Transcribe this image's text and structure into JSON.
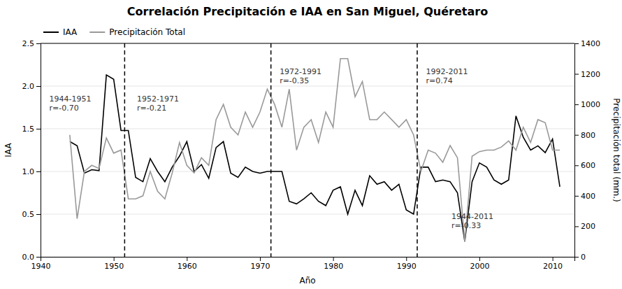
{
  "chart_data": {
    "type": "line",
    "title": "Correlación Precipitación e IAA en San Miguel, Quéretaro",
    "xlabel": "Año",
    "ylabel": "IAA",
    "y2label": "Precipitación total (mm.)",
    "x": [
      1944,
      1945,
      1946,
      1947,
      1948,
      1949,
      1950,
      1951,
      1952,
      1953,
      1954,
      1955,
      1956,
      1957,
      1958,
      1959,
      1960,
      1961,
      1962,
      1963,
      1964,
      1965,
      1966,
      1967,
      1968,
      1969,
      1970,
      1971,
      1972,
      1973,
      1974,
      1975,
      1976,
      1977,
      1978,
      1979,
      1980,
      1981,
      1982,
      1983,
      1984,
      1985,
      1986,
      1987,
      1988,
      1989,
      1990,
      1991,
      1992,
      1993,
      1994,
      1995,
      1996,
      1997,
      1998,
      1999,
      2000,
      2001,
      2002,
      2003,
      2004,
      2005,
      2006,
      2007,
      2008,
      2009,
      2010,
      2011
    ],
    "series": [
      {
        "name": "IAA",
        "color": "#000000",
        "values": [
          1.35,
          1.3,
          0.98,
          1.02,
          1.01,
          2.13,
          2.08,
          1.48,
          1.48,
          0.93,
          0.88,
          1.15,
          1.0,
          0.88,
          1.05,
          1.18,
          1.35,
          1.0,
          1.08,
          0.92,
          1.28,
          1.35,
          0.98,
          0.93,
          1.05,
          1.0,
          0.98,
          1.0,
          1.0,
          1.0,
          0.65,
          0.62,
          0.68,
          0.75,
          0.65,
          0.6,
          0.78,
          0.82,
          0.5,
          0.78,
          0.6,
          0.95,
          0.85,
          0.88,
          0.78,
          0.85,
          0.55,
          0.5,
          1.05,
          1.05,
          0.88,
          0.9,
          0.88,
          0.75,
          0.18,
          0.88,
          1.1,
          1.05,
          0.9,
          0.85,
          0.9,
          1.65,
          1.4,
          1.25,
          1.3,
          1.22,
          1.38,
          0.82
        ]
      },
      {
        "name": "Precipitación Total",
        "color": "#999999",
        "axis": "y2",
        "values": [
          800,
          250,
          560,
          600,
          580,
          780,
          680,
          700,
          380,
          380,
          400,
          560,
          430,
          380,
          550,
          750,
          600,
          550,
          650,
          600,
          900,
          1000,
          850,
          800,
          950,
          850,
          950,
          1100,
          1000,
          850,
          1100,
          700,
          850,
          900,
          750,
          950,
          850,
          1300,
          1300,
          1050,
          1150,
          900,
          900,
          950,
          900,
          850,
          900,
          800,
          560,
          700,
          680,
          620,
          730,
          650,
          100,
          660,
          690,
          700,
          700,
          720,
          760,
          700,
          850,
          750,
          900,
          880,
          700,
          700
        ]
      }
    ],
    "xlim": [
      1940,
      2013
    ],
    "xticks": [
      1940,
      1950,
      1960,
      1970,
      1980,
      1990,
      2000,
      2010
    ],
    "ylim": [
      0.0,
      2.5
    ],
    "yticks": [
      {
        "value": 0,
        "label": "0.0"
      },
      0.5,
      {
        "value": 1,
        "label": "1.0"
      },
      1.5,
      {
        "value": 2,
        "label": "2.0"
      },
      2.5
    ],
    "y2lim": [
      0,
      1400
    ],
    "y2ticks": [
      0,
      200,
      400,
      600,
      800,
      1000,
      1200,
      1400
    ],
    "vlines": {
      "values": [
        1951.5,
        1971.5,
        1991.5
      ],
      "color": "#000000",
      "line_style": "dashed"
    },
    "annotations": [
      {
        "text": "1944-1951\nr=-0.70",
        "x": 1941,
        "y": 1.9
      },
      {
        "text": "1952-1971\nr=-0.21",
        "x": 1953,
        "y": 1.9
      },
      {
        "text": "1972-1991\nr=-0.35",
        "x": 1972.5,
        "y": 2.22
      },
      {
        "text": "1992-2011\nr=0.74",
        "x": 1992.5,
        "y": 2.22
      },
      {
        "text": "1944-2011\nr=-0.33",
        "x": 1996,
        "y": 0.52
      }
    ],
    "grid": true,
    "legend": "top-left"
  }
}
